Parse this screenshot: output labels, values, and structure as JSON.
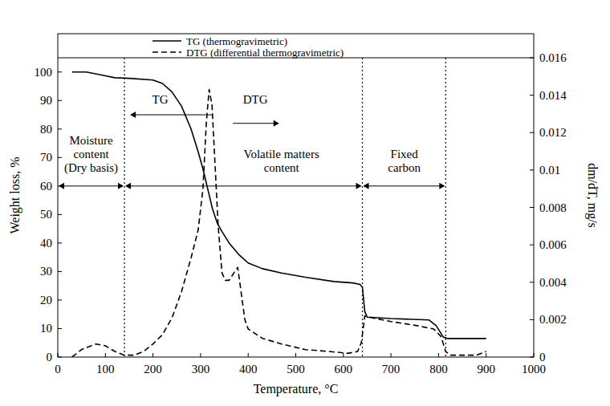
{
  "chart_data": {
    "type": "line",
    "x_label": "Temperature, °C",
    "y_label": "Weight loss, %",
    "y2_label": "dm/dT, mg/s",
    "xlim": [
      0,
      1000
    ],
    "xticks": [
      0,
      100,
      200,
      300,
      400,
      500,
      600,
      700,
      800,
      900,
      1000
    ],
    "ylim": [
      0,
      105
    ],
    "yticks": [
      0,
      10,
      20,
      30,
      40,
      50,
      60,
      70,
      80,
      90,
      100
    ],
    "y2lim": [
      0,
      0.016
    ],
    "y2ticks": [
      0,
      0.002,
      0.004,
      0.006,
      0.008,
      0.01,
      0.012,
      0.014,
      0.016
    ],
    "grid": false,
    "legend": "top",
    "series": [
      {
        "name": "TG (thermogravimetric)",
        "color": "#000000",
        "line_style": "solid",
        "x": [
          30,
          60,
          90,
          120,
          150,
          200,
          220,
          240,
          260,
          280,
          295,
          305,
          315,
          325,
          335,
          345,
          360,
          380,
          400,
          430,
          470,
          520,
          580,
          620,
          635,
          640,
          645,
          650,
          700,
          780,
          795,
          810,
          820,
          900
        ],
        "values": [
          100,
          100,
          99,
          98,
          97.8,
          97.2,
          96,
          93,
          88,
          80,
          72,
          66,
          59,
          52,
          47,
          44,
          40,
          36,
          33,
          31,
          29.5,
          28,
          26.5,
          26,
          25.5,
          24.5,
          16,
          14,
          13.5,
          13,
          11,
          7,
          6.5,
          6.5
        ]
      },
      {
        "name": "DTG (differential thermogravimetric)",
        "color": "#000000",
        "line_style": "dashed",
        "axis": "y2",
        "x": [
          30,
          50,
          80,
          100,
          120,
          140,
          160,
          180,
          200,
          220,
          240,
          260,
          280,
          295,
          305,
          312,
          318,
          324,
          330,
          337,
          345,
          352,
          360,
          370,
          378,
          385,
          393,
          400,
          430,
          470,
          520,
          570,
          610,
          630,
          638,
          645,
          660,
          700,
          750,
          790,
          805,
          815,
          825,
          880,
          900
        ],
        "values": [
          0,
          0.0004,
          0.0007,
          0.0006,
          0.0003,
          0.0001,
          0.0001,
          0.0003,
          0.0007,
          0.0012,
          0.0021,
          0.0035,
          0.0053,
          0.0068,
          0.009,
          0.0125,
          0.0143,
          0.0135,
          0.0105,
          0.007,
          0.0045,
          0.0041,
          0.0041,
          0.0045,
          0.0048,
          0.0035,
          0.002,
          0.0015,
          0.001,
          0.0007,
          0.0004,
          0.0003,
          0.0002,
          0.0003,
          0.0008,
          0.0022,
          0.0021,
          0.0019,
          0.0017,
          0.0015,
          0.0011,
          0.0003,
          0.0001,
          0.0001,
          0.0003
        ]
      }
    ],
    "boundaries": [
      140,
      640,
      815
    ],
    "regions": [
      {
        "label": [
          "Moisture",
          "content",
          "(Dry basis)"
        ],
        "from": 0,
        "to": 140,
        "y": 60,
        "label_x": 70
      },
      {
        "label": [
          "Volatile matters",
          "content"
        ],
        "from": 140,
        "to": 640,
        "y": 60,
        "label_x": 470
      },
      {
        "label": [
          "Fixed",
          "carbon"
        ],
        "from": 640,
        "to": 815,
        "y": 60,
        "label_x": 728
      }
    ],
    "annotations": [
      {
        "text": "TG",
        "x": 215,
        "y": 89,
        "arrow_from": 325,
        "arrow_to": 152,
        "arrow_y": 85
      },
      {
        "text": "DTG",
        "x": 415,
        "y": 89,
        "arrow_from": 368,
        "arrow_to": 465,
        "arrow_y": 82
      }
    ]
  }
}
